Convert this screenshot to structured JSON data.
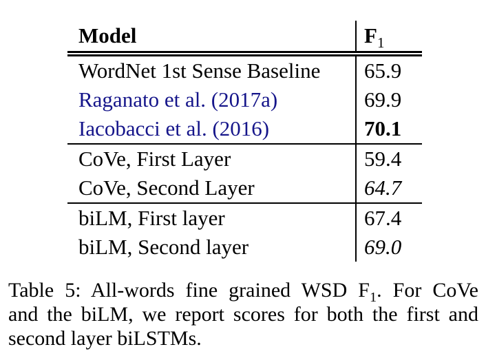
{
  "table": {
    "header": {
      "model": "Model",
      "f1_base": "F",
      "f1_sub": "1"
    },
    "rows": [
      {
        "model": "WordNet 1st Sense Baseline",
        "f1": "65.9",
        "model_style": "plain",
        "f1_style": "plain"
      },
      {
        "model": "Raganato et al. (2017a)",
        "f1": "69.9",
        "model_style": "citation",
        "f1_style": "plain"
      },
      {
        "model": "Iacobacci et al. (2016)",
        "f1": "70.1",
        "model_style": "citation",
        "f1_style": "bold"
      },
      {
        "model": "CoVe, First Layer",
        "f1": "59.4",
        "model_style": "plain",
        "f1_style": "plain"
      },
      {
        "model": "CoVe, Second Layer",
        "f1": "64.7",
        "model_style": "plain",
        "f1_style": "italic"
      },
      {
        "model": "biLM, First layer",
        "f1": "67.4",
        "model_style": "plain",
        "f1_style": "plain"
      },
      {
        "model": "biLM, Second layer",
        "f1": "69.0",
        "model_style": "plain",
        "f1_style": "italic"
      }
    ]
  },
  "caption": {
    "line1_prefix": "Table 5:  All-words fine grained WSD F",
    "line1_sub": "1",
    "line1_suffix": ".  For CoVe",
    "line2": "and the biLM, we report scores for both the first and",
    "line3": "second layer biLSTMs."
  },
  "colors": {
    "background": "#ffffff",
    "text": "#000000",
    "rule": "#000000",
    "citation_link": "#15158a"
  }
}
